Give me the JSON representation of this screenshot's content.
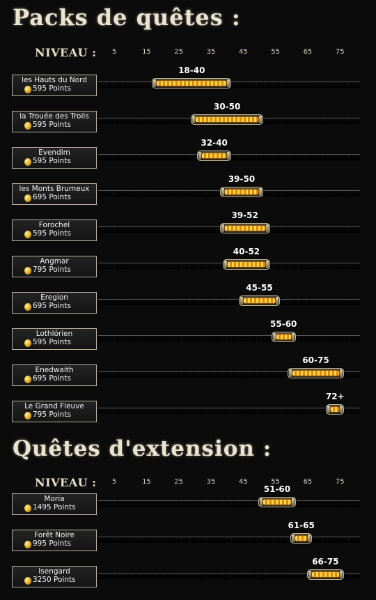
{
  "sections": [
    {
      "title": "Packs de quêtes :",
      "axis_label": "NIVEAU :",
      "quests": [
        {
          "name": "les Hauts du Nord",
          "points": "595 Points",
          "range": "18-40"
        },
        {
          "name": "la Trouée des Trolls",
          "points": "595 Points",
          "range": "30-50"
        },
        {
          "name": "Evendim",
          "points": "595 Points",
          "range": "32-40"
        },
        {
          "name": "les Monts Brumeux",
          "points": "695 Points",
          "range": "39-50"
        },
        {
          "name": "Forochel",
          "points": "595 Points",
          "range": "39-52"
        },
        {
          "name": "Angmar",
          "points": "795 Points",
          "range": "40-52"
        },
        {
          "name": "Eregion",
          "points": "695 Points",
          "range": "45-55"
        },
        {
          "name": "Lothlórien",
          "points": "595 Points",
          "range": "55-60"
        },
        {
          "name": "Enedwaith",
          "points": "695 Points",
          "range": "60-75"
        },
        {
          "name": "Le Grand Fleuve",
          "points": "795 Points",
          "range": "72+"
        }
      ]
    },
    {
      "title": "Quêtes d'extension :",
      "axis_label": "NIVEAU :",
      "quests": [
        {
          "name": "Moria",
          "points": "1495 Points",
          "range": "51-60"
        },
        {
          "name": "Forêt Noire",
          "points": "995 Points",
          "range": "61-65"
        },
        {
          "name": "Isengard",
          "points": "3250 Points",
          "range": "66-75"
        }
      ]
    }
  ],
  "chart_data": [
    {
      "type": "bar",
      "orientation": "horizontal-range",
      "title": "Packs de quêtes :",
      "xlabel": "NIVEAU :",
      "x_ticks": [
        5,
        15,
        25,
        35,
        45,
        55,
        65,
        75
      ],
      "categories": [
        "les Hauts du Nord",
        "la Trouée des Trolls",
        "Evendim",
        "les Monts Brumeux",
        "Forochel",
        "Angmar",
        "Eregion",
        "Lothlórien",
        "Enedwaith",
        "Le Grand Fleuve"
      ],
      "ranges": [
        [
          18,
          40
        ],
        [
          30,
          50
        ],
        [
          32,
          40
        ],
        [
          39,
          50
        ],
        [
          39,
          52
        ],
        [
          40,
          52
        ],
        [
          45,
          55
        ],
        [
          55,
          60
        ],
        [
          60,
          75
        ],
        [
          72,
          75
        ]
      ],
      "labels": [
        "18-40",
        "30-50",
        "32-40",
        "39-50",
        "39-52",
        "40-52",
        "45-55",
        "55-60",
        "60-75",
        "72+"
      ],
      "points": [
        595,
        595,
        595,
        695,
        595,
        795,
        695,
        595,
        695,
        795
      ],
      "xlim": [
        0,
        78
      ]
    },
    {
      "type": "bar",
      "orientation": "horizontal-range",
      "title": "Quêtes d'extension :",
      "xlabel": "NIVEAU :",
      "x_ticks": [
        5,
        15,
        25,
        35,
        45,
        55,
        65,
        75
      ],
      "categories": [
        "Moria",
        "Forêt Noire",
        "Isengard"
      ],
      "ranges": [
        [
          51,
          60
        ],
        [
          61,
          65
        ],
        [
          66,
          75
        ]
      ],
      "labels": [
        "51-60",
        "61-65",
        "66-75"
      ],
      "points": [
        1495,
        995,
        3250
      ],
      "xlim": [
        0,
        78
      ]
    }
  ],
  "colors": {
    "background": "#0b0b0b",
    "bar_fill": "#f0a000",
    "bar_frame": "#c7bd9a",
    "text": "#ffffff"
  }
}
